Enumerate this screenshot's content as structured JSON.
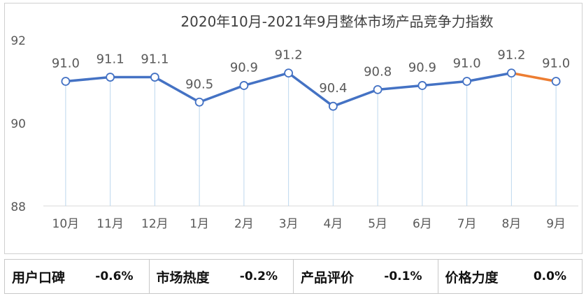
{
  "chart_data": {
    "type": "line",
    "title": "2020年10月-2021年9月整体市场产品竞争力指数",
    "categories": [
      "10月",
      "11月",
      "12月",
      "1月",
      "2月",
      "3月",
      "4月",
      "5月",
      "6月",
      "7月",
      "8月",
      "9月"
    ],
    "series": [
      {
        "values": [
          91.0,
          91.1,
          91.1,
          90.5,
          90.9,
          91.2,
          90.4,
          90.8,
          90.9,
          91.0,
          91.2,
          91.0
        ]
      }
    ],
    "data_labels": [
      "91.0",
      "91.1",
      "91.1",
      "90.5",
      "90.9",
      "91.2",
      "90.4",
      "90.8",
      "90.9",
      "91.0",
      "91.2",
      "91.0"
    ],
    "ylim": [
      88,
      92
    ],
    "yticks": [
      "88",
      "90",
      "92"
    ],
    "grid": false,
    "colors": {
      "line": "#4472c4",
      "last_segment": "#ed7d31",
      "drop_lines": "#bdd7ee"
    }
  },
  "summary": [
    {
      "label": "用户口碑",
      "value": "-0.6%"
    },
    {
      "label": "市场热度",
      "value": "-0.2%"
    },
    {
      "label": "产品评价",
      "value": "-0.1%"
    },
    {
      "label": "价格力度",
      "value": "0.0%"
    }
  ]
}
